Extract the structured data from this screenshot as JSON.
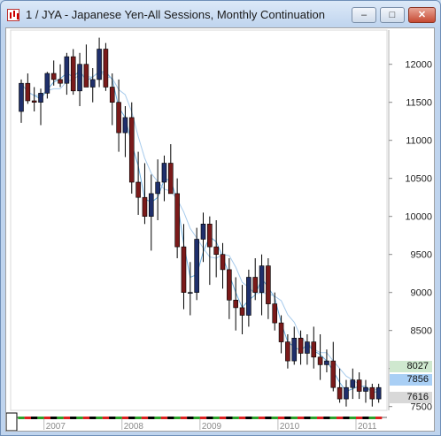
{
  "window": {
    "title": "1 / JYA - Japanese Yen-All Sessions, Monthly Continuation",
    "min_label": "‒",
    "max_label": "□",
    "close_label": "✕"
  },
  "colors": {
    "up": "#1f2f6b",
    "down": "#7a1a1a",
    "ma_fast": "#6aaee0",
    "ma_slow": "#a7cbec",
    "tag_1": "#cfe8cf",
    "tag_2": "#a9cff5",
    "tag_3": "#d8d8d8"
  },
  "price_tags": [
    {
      "label": "8027",
      "color": "#cfe8cf"
    },
    {
      "label": "7856",
      "color": "#a9cff5"
    },
    {
      "label": "7616",
      "color": "#d8d8d8"
    }
  ],
  "chart_data": {
    "type": "candlestick",
    "title": "1 / JYA - Japanese Yen-All Sessions, Monthly Continuation",
    "y_ticks": [
      12000,
      11500,
      11000,
      10500,
      10000,
      9500,
      9000,
      8500,
      8000,
      7500
    ],
    "ylim": [
      7450,
      12450
    ],
    "x_ticks": [
      "2007",
      "2008",
      "2009",
      "2010",
      "2011"
    ],
    "x_tick_index": [
      4,
      16,
      28,
      40,
      52
    ],
    "series": [
      {
        "name": "",
        "type": "ohlc",
        "values": [
          [
            11380,
            11800,
            11230,
            11750
          ],
          [
            11750,
            11880,
            11480,
            11520
          ],
          [
            11520,
            11700,
            11380,
            11500
          ],
          [
            11500,
            11680,
            11200,
            11620
          ],
          [
            11620,
            11900,
            11550,
            11880
          ],
          [
            11880,
            12050,
            11720,
            11800
          ],
          [
            11800,
            12000,
            11700,
            11750
          ],
          [
            11750,
            12150,
            11600,
            12100
          ],
          [
            12100,
            12200,
            11600,
            11650
          ],
          [
            11650,
            12150,
            11450,
            12000
          ],
          [
            12000,
            12260,
            11900,
            11700
          ],
          [
            11700,
            11950,
            11500,
            11800
          ],
          [
            11800,
            12350,
            11700,
            12200
          ],
          [
            12200,
            12280,
            11650,
            11700
          ],
          [
            11700,
            11880,
            11200,
            11500
          ],
          [
            11500,
            11800,
            10850,
            11100
          ],
          [
            11100,
            11450,
            10780,
            11300
          ],
          [
            11300,
            11500,
            10300,
            10450
          ],
          [
            10450,
            10850,
            10020,
            10250
          ],
          [
            10250,
            10700,
            9900,
            10000
          ],
          [
            10000,
            10550,
            9550,
            10300
          ],
          [
            10300,
            10750,
            9950,
            10450
          ],
          [
            10450,
            10800,
            10200,
            10700
          ],
          [
            10700,
            10950,
            10350,
            10300
          ],
          [
            10300,
            10500,
            9450,
            9600
          ],
          [
            9600,
            9900,
            8780,
            9000
          ],
          [
            9000,
            9400,
            8700,
            9000
          ],
          [
            9000,
            9850,
            8900,
            9700
          ],
          [
            9700,
            10050,
            9400,
            9900
          ],
          [
            9900,
            10000,
            9100,
            9600
          ],
          [
            9600,
            9950,
            9200,
            9500
          ],
          [
            9500,
            9650,
            9050,
            9300
          ],
          [
            9300,
            9450,
            8650,
            8900
          ],
          [
            8900,
            9200,
            8500,
            8800
          ],
          [
            8800,
            9100,
            8450,
            8700
          ],
          [
            8700,
            9300,
            8550,
            9200
          ],
          [
            9200,
            9450,
            8900,
            9000
          ],
          [
            9000,
            9500,
            8700,
            9350
          ],
          [
            9350,
            9450,
            8650,
            8850
          ],
          [
            8850,
            9000,
            8500,
            8600
          ],
          [
            8600,
            8700,
            8200,
            8350
          ],
          [
            8350,
            8450,
            8000,
            8100
          ],
          [
            8100,
            8550,
            8050,
            8400
          ],
          [
            8400,
            8500,
            8050,
            8200
          ],
          [
            8200,
            8450,
            8050,
            8350
          ],
          [
            8350,
            8550,
            8000,
            8150
          ],
          [
            8150,
            8450,
            7850,
            8050
          ],
          [
            8050,
            8250,
            7950,
            8100
          ],
          [
            8100,
            8350,
            7700,
            7750
          ],
          [
            7750,
            8000,
            7550,
            7600
          ],
          [
            7600,
            7850,
            7500,
            7750
          ],
          [
            7750,
            8000,
            7600,
            7850
          ],
          [
            7850,
            7950,
            7600,
            7700
          ],
          [
            7700,
            7850,
            7550,
            7750
          ],
          [
            7750,
            7800,
            7500,
            7600
          ],
          [
            7600,
            7800,
            7550,
            7750
          ]
        ]
      }
    ]
  }
}
